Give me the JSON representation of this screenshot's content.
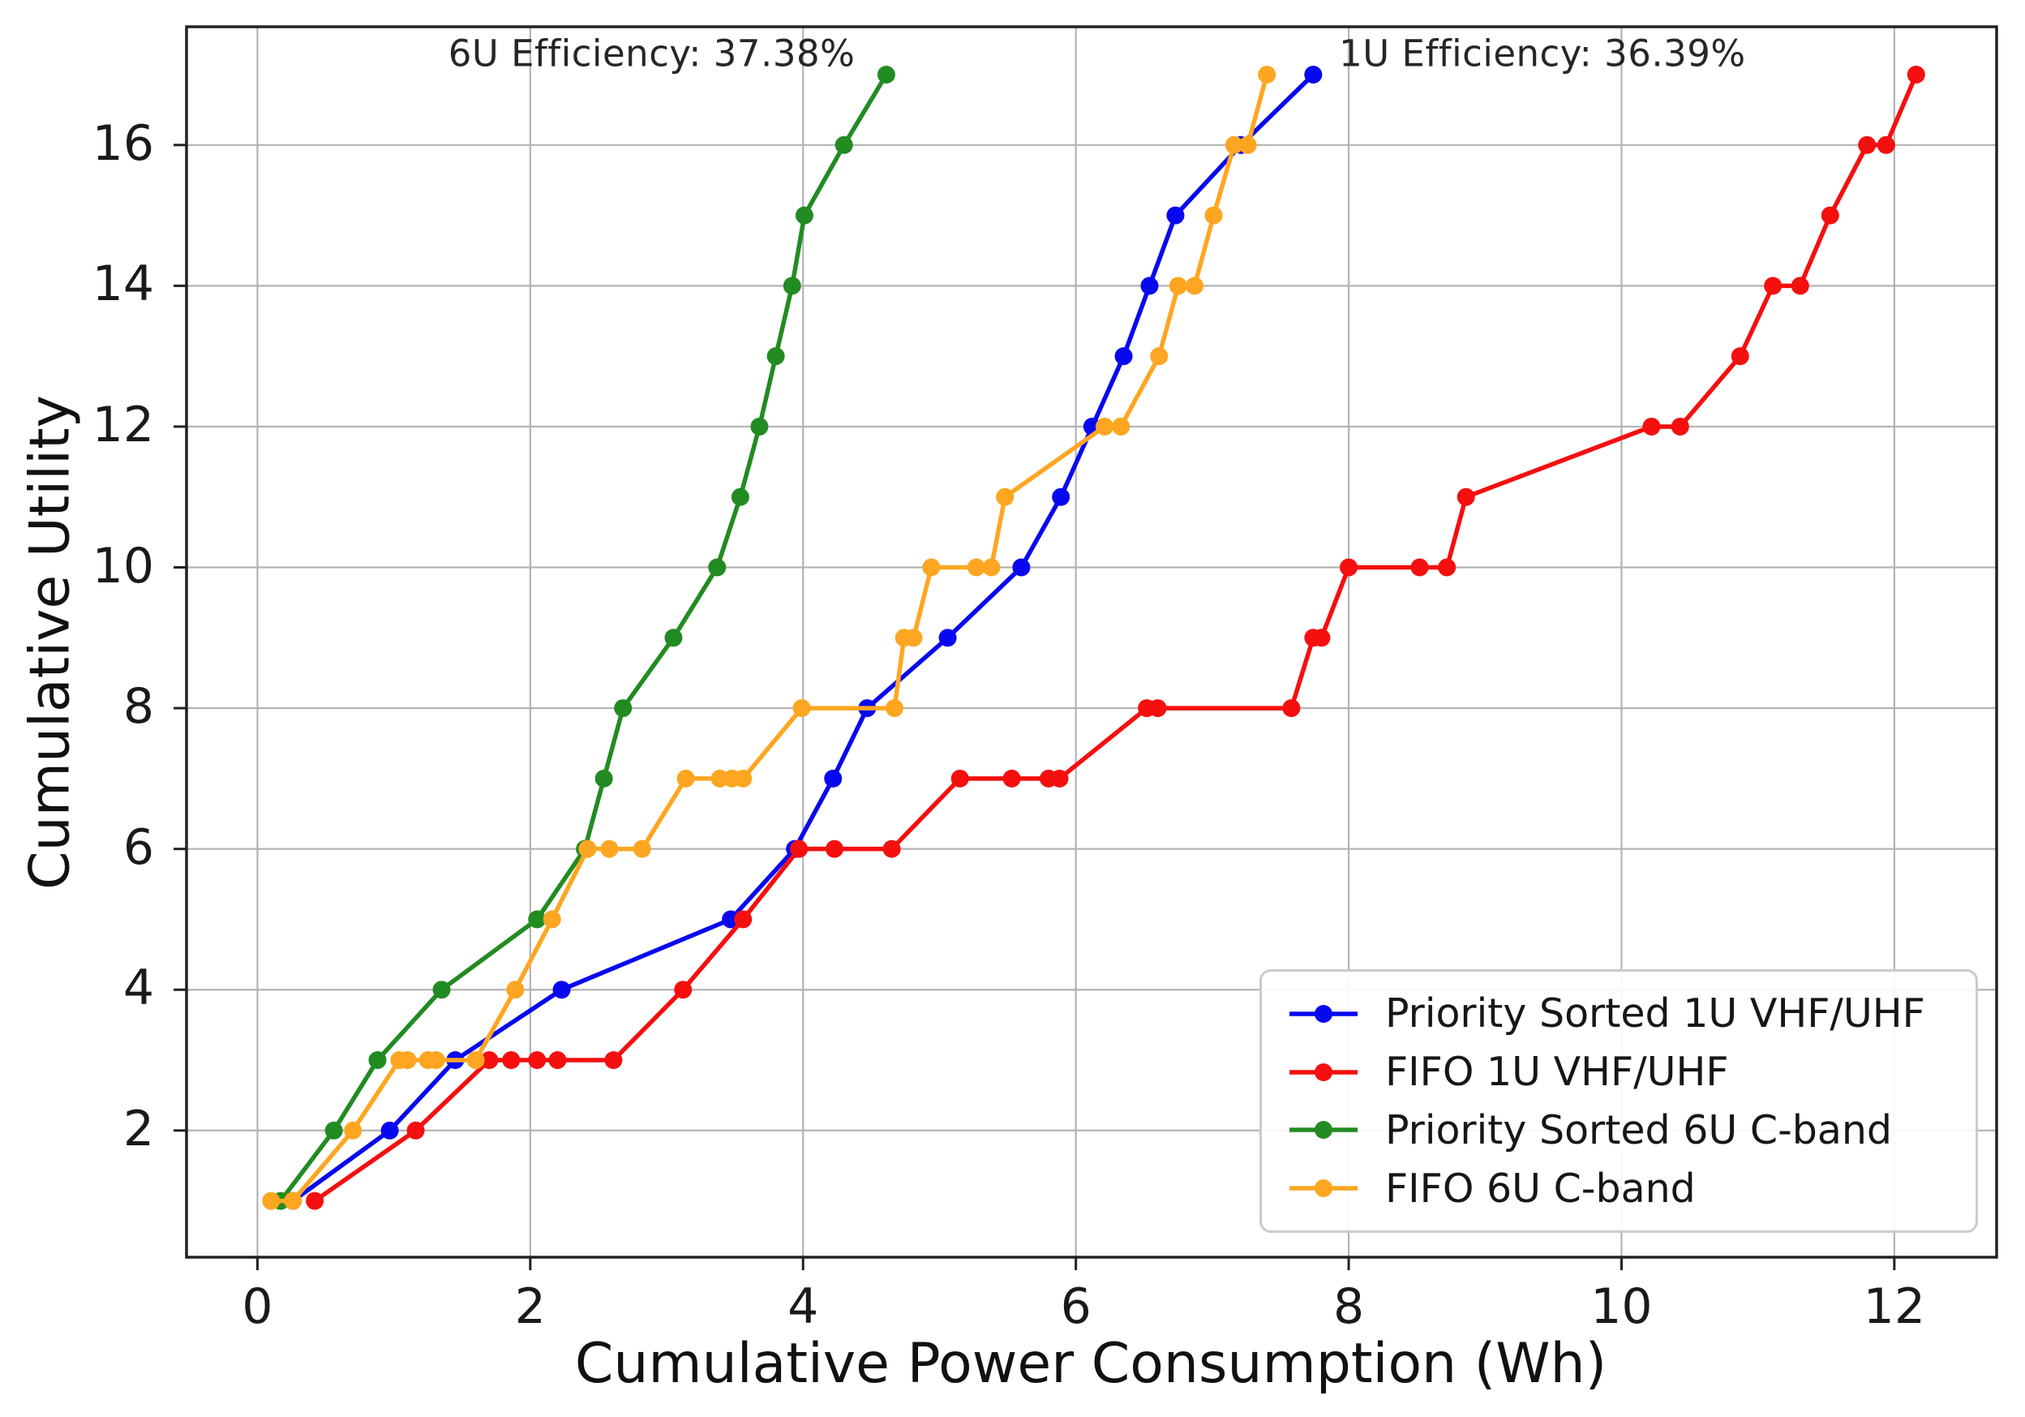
{
  "chart_data": {
    "type": "line",
    "title": "",
    "xlabel": "Cumulative Power Consumption (Wh)",
    "ylabel": "Cumulative Utility",
    "xlim": [
      -0.52,
      12.75
    ],
    "ylim": [
      0.2,
      17.68
    ],
    "x_ticks": [
      0,
      2,
      4,
      6,
      8,
      10,
      12
    ],
    "y_ticks": [
      2,
      4,
      6,
      8,
      10,
      12,
      14,
      16
    ],
    "grid": true,
    "grid_color": "#b3b3b3",
    "spine_color": "#222222",
    "legend_position": "lower right",
    "annotations": [
      {
        "text": "6U Efficiency: 37.38%",
        "x": 2.89,
        "y": 17.3
      },
      {
        "text": "1U Efficiency: 36.39%",
        "x": 9.42,
        "y": 17.3
      }
    ],
    "series": [
      {
        "name": "Priority Sorted 1U VHF/UHF",
        "color": "#0808f0",
        "marker": "circle",
        "points": [
          [
            0.26,
            1
          ],
          [
            0.97,
            2
          ],
          [
            1.45,
            3
          ],
          [
            2.23,
            4
          ],
          [
            3.47,
            5
          ],
          [
            3.94,
            6
          ],
          [
            4.22,
            7
          ],
          [
            4.47,
            8
          ],
          [
            5.06,
            9
          ],
          [
            5.6,
            10
          ],
          [
            5.89,
            11
          ],
          [
            6.12,
            12
          ],
          [
            6.35,
            13
          ],
          [
            6.54,
            14
          ],
          [
            6.73,
            15
          ],
          [
            7.21,
            16
          ],
          [
            7.74,
            17
          ]
        ]
      },
      {
        "name": "FIFO 1U VHF/UHF",
        "color": "#f50f0f",
        "marker": "circle",
        "points": [
          [
            0.42,
            1
          ],
          [
            1.16,
            2
          ],
          [
            1.7,
            3
          ],
          [
            1.86,
            3
          ],
          [
            2.05,
            3
          ],
          [
            2.2,
            3
          ],
          [
            2.61,
            3
          ],
          [
            3.12,
            4
          ],
          [
            3.56,
            5
          ],
          [
            3.97,
            6
          ],
          [
            4.23,
            6
          ],
          [
            4.65,
            6
          ],
          [
            5.15,
            7
          ],
          [
            5.53,
            7
          ],
          [
            5.8,
            7
          ],
          [
            5.88,
            7
          ],
          [
            6.52,
            8
          ],
          [
            6.6,
            8
          ],
          [
            7.58,
            8
          ],
          [
            7.74,
            9
          ],
          [
            7.8,
            9
          ],
          [
            8.0,
            10
          ],
          [
            8.52,
            10
          ],
          [
            8.72,
            10
          ],
          [
            8.86,
            11
          ],
          [
            10.22,
            12
          ],
          [
            10.43,
            12
          ],
          [
            10.87,
            13
          ],
          [
            11.11,
            14
          ],
          [
            11.31,
            14
          ],
          [
            11.53,
            15
          ],
          [
            11.8,
            16
          ],
          [
            11.94,
            16
          ],
          [
            12.16,
            17
          ]
        ]
      },
      {
        "name": "Priority Sorted 6U C-band",
        "color": "#228b22",
        "marker": "circle",
        "points": [
          [
            0.17,
            1
          ],
          [
            0.56,
            2
          ],
          [
            0.88,
            3
          ],
          [
            1.35,
            4
          ],
          [
            2.05,
            5
          ],
          [
            2.4,
            6
          ],
          [
            2.54,
            7
          ],
          [
            2.68,
            8
          ],
          [
            3.05,
            9
          ],
          [
            3.37,
            10
          ],
          [
            3.54,
            11
          ],
          [
            3.68,
            12
          ],
          [
            3.8,
            13
          ],
          [
            3.92,
            14
          ],
          [
            4.01,
            15
          ],
          [
            4.3,
            16
          ],
          [
            4.61,
            17
          ]
        ]
      },
      {
        "name": "FIFO 6U C-band",
        "color": "#fea621",
        "marker": "circle",
        "points": [
          [
            0.1,
            1
          ],
          [
            0.26,
            1
          ],
          [
            0.7,
            2
          ],
          [
            1.04,
            3
          ],
          [
            1.1,
            3
          ],
          [
            1.25,
            3
          ],
          [
            1.31,
            3
          ],
          [
            1.6,
            3
          ],
          [
            1.89,
            4
          ],
          [
            2.16,
            5
          ],
          [
            2.42,
            6
          ],
          [
            2.58,
            6
          ],
          [
            2.82,
            6
          ],
          [
            3.14,
            7
          ],
          [
            3.39,
            7
          ],
          [
            3.48,
            7
          ],
          [
            3.56,
            7
          ],
          [
            3.99,
            8
          ],
          [
            4.67,
            8
          ],
          [
            4.74,
            9
          ],
          [
            4.81,
            9
          ],
          [
            4.94,
            10
          ],
          [
            5.27,
            10
          ],
          [
            5.38,
            10
          ],
          [
            5.48,
            11
          ],
          [
            6.21,
            12
          ],
          [
            6.33,
            12
          ],
          [
            6.61,
            13
          ],
          [
            6.75,
            14
          ],
          [
            6.87,
            14
          ],
          [
            7.01,
            15
          ],
          [
            7.16,
            16
          ],
          [
            7.26,
            16
          ],
          [
            7.4,
            17
          ]
        ]
      }
    ]
  }
}
